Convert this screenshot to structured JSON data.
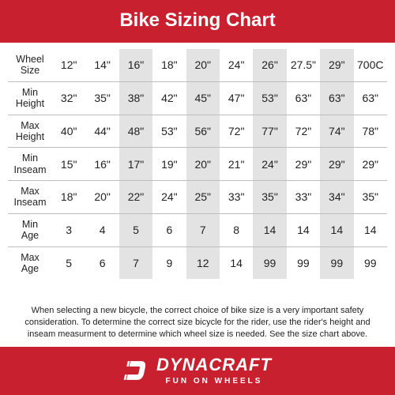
{
  "colors": {
    "header_bg": "#c9202f",
    "header_fg": "#ffffff",
    "footer_bg": "#c9202f",
    "footer_fg": "#ffffff",
    "shade": "#e3e3e3",
    "rule": "#bdbdbd",
    "text": "#222222"
  },
  "title": "Bike Sizing Chart",
  "table": {
    "columns": [
      "12\"",
      "14\"",
      "16\"",
      "18\"",
      "20\"",
      "24\"",
      "26\"",
      "27.5\"",
      "29\"",
      "700C"
    ],
    "shaded_cols": [
      2,
      4,
      6,
      8
    ],
    "rows": [
      {
        "label": "Wheel Size",
        "cells": [
          "12\"",
          "14\"",
          "16\"",
          "18\"",
          "20\"",
          "24\"",
          "26\"",
          "27.5\"",
          "29\"",
          "700C"
        ]
      },
      {
        "label": "Min Height",
        "cells": [
          "32\"",
          "35\"",
          "38\"",
          "42\"",
          "45\"",
          "47\"",
          "53\"",
          "63\"",
          "63\"",
          "63\""
        ]
      },
      {
        "label": "Max Height",
        "cells": [
          "40\"",
          "44\"",
          "48\"",
          "53\"",
          "56\"",
          "72\"",
          "77\"",
          "72\"",
          "74\"",
          "78\""
        ]
      },
      {
        "label": "Min Inseam",
        "cells": [
          "15\"",
          "16\"",
          "17\"",
          "19\"",
          "20\"",
          "21\"",
          "24\"",
          "29\"",
          "29\"",
          "29\""
        ]
      },
      {
        "label": "Max Inseam",
        "cells": [
          "18\"",
          "20\"",
          "22\"",
          "24\"",
          "25\"",
          "33\"",
          "35\"",
          "33\"",
          "34\"",
          "35\""
        ]
      },
      {
        "label": "Min Age",
        "cells": [
          "3",
          "4",
          "5",
          "6",
          "7",
          "8",
          "14",
          "14",
          "14",
          "14"
        ]
      },
      {
        "label": "Max Age",
        "cells": [
          "5",
          "6",
          "7",
          "9",
          "12",
          "14",
          "99",
          "99",
          "99",
          "99"
        ]
      }
    ]
  },
  "note": "When selecting a new bicycle, the correct choice of bike size is a very important safety consideration. To determine the correct size bicycle for the rider, use the rider's height and inseam measurment to determine which wheel size is needed. See the size chart above.",
  "brand": {
    "name": "DYNACRAFT",
    "tagline": "FUN ON WHEELS"
  }
}
